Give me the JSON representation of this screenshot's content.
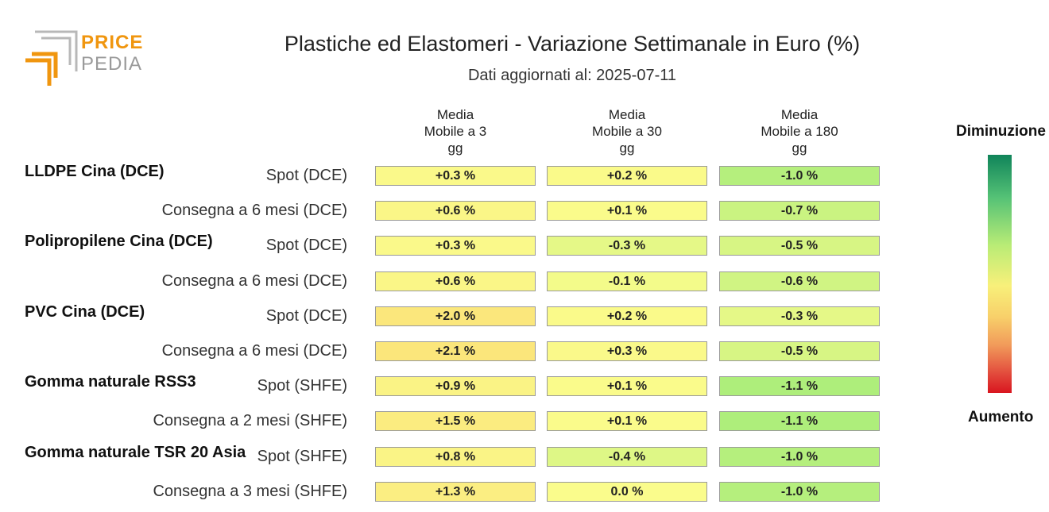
{
  "brand": {
    "line1": "PRICE",
    "line2": "PEDIA"
  },
  "title": "Plastiche ed Elastomeri - Variazione Settimanale in Euro (%)",
  "subtitle": "Dati aggiornati al: 2025-07-11",
  "legend": {
    "top": "Diminuzione",
    "bottom": "Aumento"
  },
  "chart_data": {
    "type": "table",
    "columns": [
      "Media\nMobile a 3\ngg",
      "Media\nMobile a 30\ngg",
      "Media\nMobile a 180\ngg"
    ],
    "groups": [
      {
        "name": "LLDPE Cina (DCE)",
        "rows": [
          {
            "label": "Spot (DCE)",
            "values": [
              0.3,
              0.2,
              -1.0
            ],
            "texts": [
              "+0.3 %",
              "+0.2 %",
              "-1.0 %"
            ]
          },
          {
            "label": "Consegna a 6 mesi (DCE)",
            "values": [
              0.6,
              0.1,
              -0.7
            ],
            "texts": [
              "+0.6 %",
              "+0.1 %",
              "-0.7 %"
            ]
          }
        ]
      },
      {
        "name": "Polipropilene Cina (DCE)",
        "rows": [
          {
            "label": "Spot (DCE)",
            "values": [
              0.3,
              -0.3,
              -0.5
            ],
            "texts": [
              "+0.3 %",
              "-0.3 %",
              "-0.5 %"
            ]
          },
          {
            "label": "Consegna a 6 mesi (DCE)",
            "values": [
              0.6,
              -0.1,
              -0.6
            ],
            "texts": [
              "+0.6 %",
              "-0.1 %",
              "-0.6 %"
            ]
          }
        ]
      },
      {
        "name": "PVC Cina (DCE)",
        "rows": [
          {
            "label": "Spot (DCE)",
            "values": [
              2.0,
              0.2,
              -0.3
            ],
            "texts": [
              "+2.0 %",
              "+0.2 %",
              "-0.3 %"
            ]
          },
          {
            "label": "Consegna a 6 mesi (DCE)",
            "values": [
              2.1,
              0.3,
              -0.5
            ],
            "texts": [
              "+2.1 %",
              "+0.3 %",
              "-0.5 %"
            ]
          }
        ]
      },
      {
        "name": "Gomma naturale RSS3",
        "rows": [
          {
            "label": "Spot (SHFE)",
            "values": [
              0.9,
              0.1,
              -1.1
            ],
            "texts": [
              "+0.9 %",
              "+0.1 %",
              "-1.1 %"
            ]
          },
          {
            "label": "Consegna a 2 mesi (SHFE)",
            "values": [
              1.5,
              0.1,
              -1.1
            ],
            "texts": [
              "+1.5 %",
              "+0.1 %",
              "-1.1 %"
            ]
          }
        ]
      },
      {
        "name": "Gomma naturale TSR 20 Asia",
        "rows": [
          {
            "label": "Spot (SHFE)",
            "values": [
              0.8,
              -0.4,
              -1.0
            ],
            "texts": [
              "+0.8 %",
              "-0.4 %",
              "-1.0 %"
            ]
          },
          {
            "label": "Consegna a 3 mesi (SHFE)",
            "values": [
              1.3,
              0.0,
              -1.0
            ],
            "texts": [
              "+1.3 %",
              "0.0 %",
              "-1.0 %"
            ]
          }
        ]
      }
    ]
  },
  "colors": {
    "scale_top": "#10845a",
    "scale_mid": "#f8f07a",
    "scale_bottom": "#d9151f",
    "logo_orange": "#f0960f",
    "logo_gray": "#9a9a9a"
  }
}
